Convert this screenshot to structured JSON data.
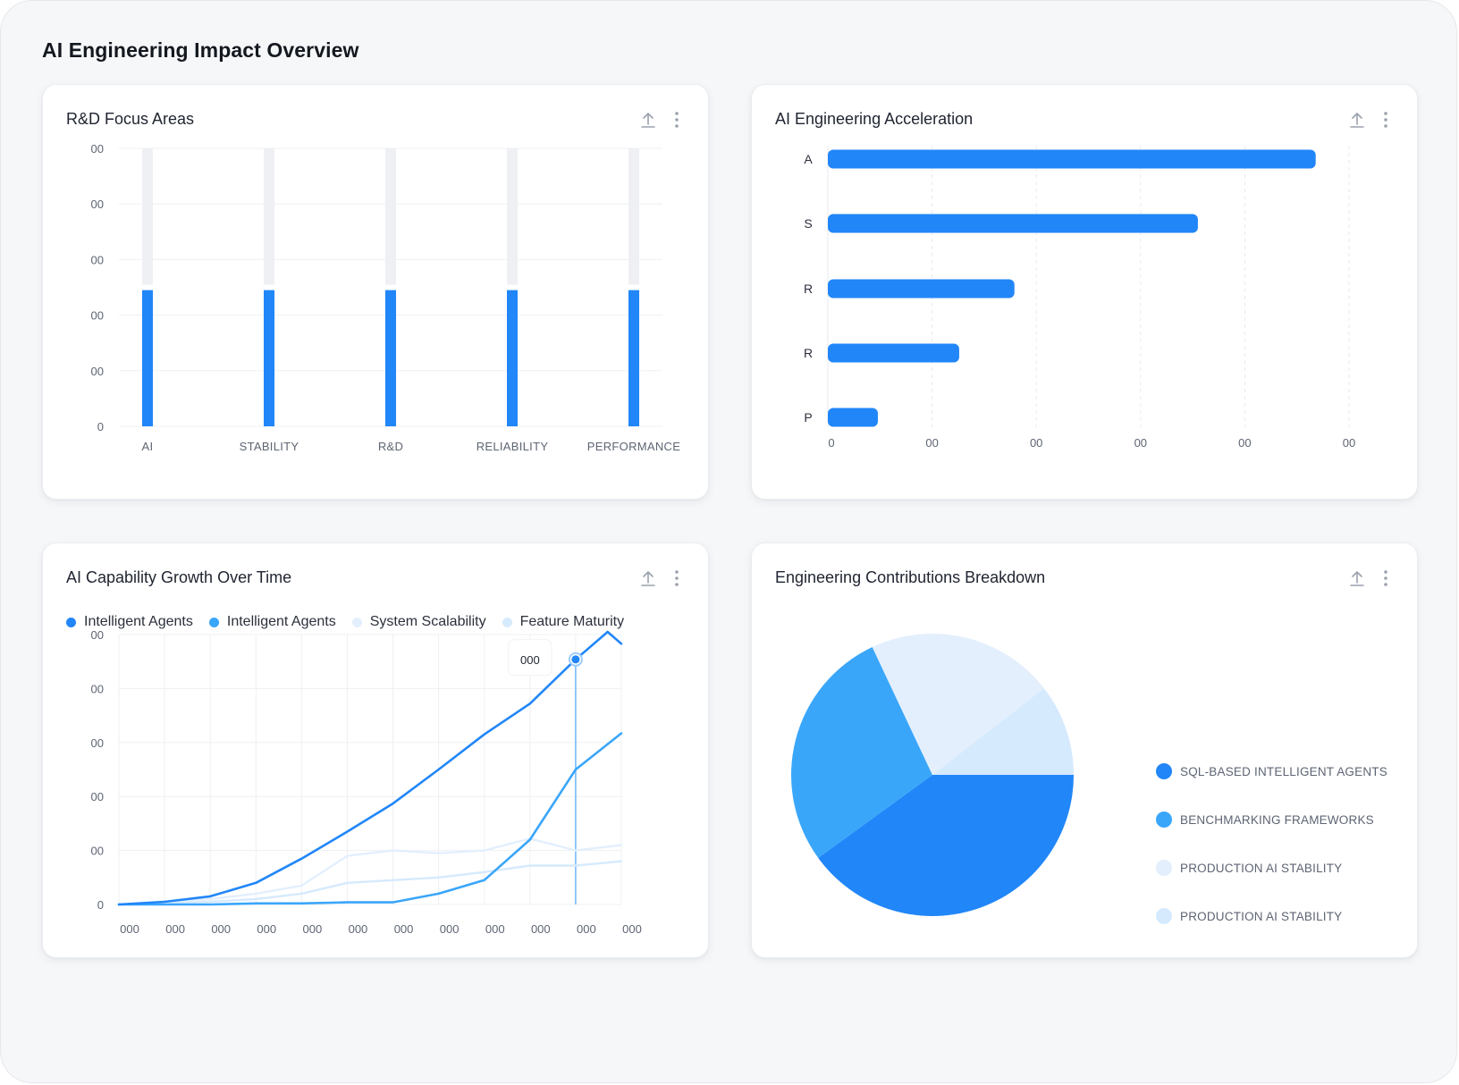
{
  "page": {
    "title": "AI Engineering Impact Overview"
  },
  "colors": {
    "primary": "#2186f8",
    "secondary": "#3aa6fa",
    "light": "#e3effd",
    "lighter": "#d6eafd",
    "track": "#eff0f4"
  },
  "icons": {
    "export": "upload-icon",
    "menu": "more-vertical-icon"
  },
  "chart_data": [
    {
      "type": "bar",
      "title": "R&D Focus Areas",
      "categories": [
        "AI",
        "STABILITY",
        "R&D",
        "RELIABILITY",
        "PERFORMANCE"
      ],
      "values": [
        2.45,
        2.45,
        2.45,
        2.45,
        2.45
      ],
      "track_max": 5,
      "ylim": [
        0,
        5
      ],
      "yticks": [
        "0",
        "00",
        "00",
        "00",
        "00",
        "00"
      ],
      "grid": true
    },
    {
      "type": "bar",
      "orientation": "horizontal",
      "title": "AI Engineering Acceleration",
      "categories": [
        "A",
        "S",
        "R",
        "R",
        "P"
      ],
      "values": [
        4.68,
        3.55,
        1.79,
        1.26,
        0.48
      ],
      "xlim": [
        0,
        5
      ],
      "xticks": [
        "0",
        "00",
        "00",
        "00",
        "00",
        "00"
      ],
      "grid": true
    },
    {
      "type": "line",
      "title": "AI Capability Growth Over Time",
      "x": [
        0,
        1,
        2,
        3,
        4,
        5,
        6,
        7,
        8,
        9,
        10,
        11
      ],
      "xticks": [
        "000",
        "000",
        "000",
        "000",
        "000",
        "000",
        "000",
        "000",
        "000",
        "000",
        "000",
        "000"
      ],
      "ylim": [
        0,
        5
      ],
      "yticks": [
        "0",
        "00",
        "00",
        "00",
        "00",
        "00"
      ],
      "series": [
        {
          "name": "Intelligent Agents",
          "color": "#2186f8",
          "x": [
            0,
            1,
            2,
            3,
            4,
            5,
            6,
            7,
            8,
            9,
            10,
            10.7,
            11
          ],
          "values": [
            0,
            0.05,
            0.15,
            0.4,
            0.85,
            1.35,
            1.87,
            2.5,
            3.15,
            3.72,
            4.54,
            5.05,
            4.83
          ]
        },
        {
          "name": "Intelligent Agents",
          "color": "#3aa6fa",
          "x": [
            0,
            1,
            2,
            3,
            4,
            5,
            6,
            7,
            8,
            9,
            10,
            11
          ],
          "values": [
            0,
            0,
            0,
            0.02,
            0.02,
            0.04,
            0.04,
            0.2,
            0.45,
            1.2,
            2.5,
            3.17
          ]
        },
        {
          "name": "System Scalability",
          "color": "#e3effd",
          "x": [
            0,
            1,
            2,
            3,
            4,
            5,
            6,
            7,
            8,
            9,
            10,
            11
          ],
          "values": [
            0,
            0.05,
            0.1,
            0.2,
            0.35,
            0.9,
            1.0,
            0.95,
            1.0,
            1.22,
            1.0,
            1.1
          ]
        },
        {
          "name": "Feature Maturity",
          "color": "#d6eafd",
          "x": [
            0,
            1,
            2,
            3,
            4,
            5,
            6,
            7,
            8,
            9,
            10,
            11
          ],
          "values": [
            0,
            0.02,
            0.05,
            0.1,
            0.2,
            0.4,
            0.45,
            0.5,
            0.6,
            0.72,
            0.72,
            0.8
          ]
        }
      ],
      "tooltip": {
        "label": "000",
        "x": 10,
        "value": 4.54
      },
      "grid": true
    },
    {
      "type": "pie",
      "title": "Engineering Contributions Breakdown",
      "slices": [
        {
          "label": "SQL-BASED INTELLIGENT AGENTS",
          "value": 40,
          "color": "#2186f8"
        },
        {
          "label": "BENCHMARKING FRAMEWORKS",
          "value": 28,
          "color": "#3aa6fa"
        },
        {
          "label": "PRODUCTION AI STABILITY",
          "value": 21.5,
          "color": "#e3effd"
        },
        {
          "label": "PRODUCTION AI STABILITY",
          "value": 10.5,
          "color": "#d6eafd"
        }
      ]
    }
  ]
}
